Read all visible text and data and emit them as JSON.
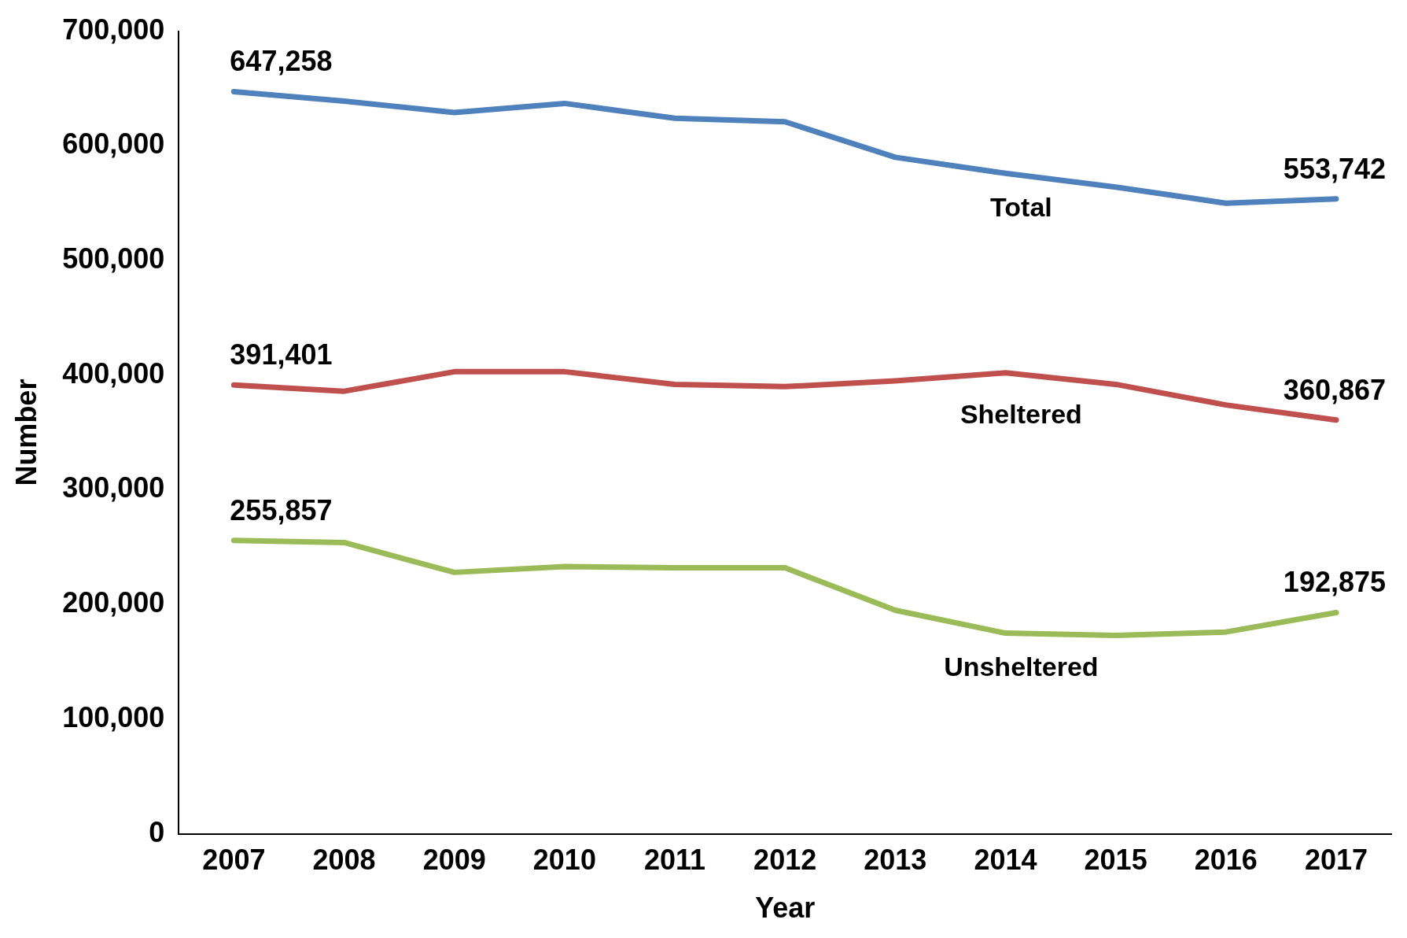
{
  "chart_data": {
    "type": "line",
    "xlabel": "Year",
    "ylabel": "Number",
    "categories": [
      "2007",
      "2008",
      "2009",
      "2010",
      "2011",
      "2012",
      "2013",
      "2014",
      "2015",
      "2016",
      "2017"
    ],
    "series": [
      {
        "name": "Total",
        "color": "#4f81bd",
        "values": [
          647258,
          639000,
          629000,
          637000,
          624000,
          621000,
          590000,
          576000,
          564000,
          550000,
          553742
        ],
        "value_labels": [
          "647,258",
          null,
          null,
          null,
          null,
          null,
          null,
          null,
          null,
          null,
          "553,742"
        ]
      },
      {
        "name": "Sheltered",
        "color": "#c0504d",
        "values": [
          391401,
          386000,
          403000,
          403000,
          392000,
          390000,
          395000,
          402000,
          392000,
          374000,
          360867
        ],
        "value_labels": [
          "391,401",
          null,
          null,
          null,
          null,
          null,
          null,
          null,
          null,
          null,
          "360,867"
        ]
      },
      {
        "name": "Unsheltered",
        "color": "#9bbb59",
        "values": [
          255857,
          254000,
          228000,
          233000,
          232000,
          232000,
          195000,
          175000,
          173000,
          176000,
          192875
        ],
        "value_labels": [
          "255,857",
          null,
          null,
          null,
          null,
          null,
          null,
          null,
          null,
          null,
          "192,875"
        ]
      }
    ],
    "ylim": [
      0,
      700000
    ],
    "yticks": [
      0,
      {
        "value": 100000,
        "label": "100,000"
      },
      {
        "value": 200000,
        "label": "200,000"
      },
      {
        "value": 300000,
        "label": "300,000"
      },
      {
        "value": 400000,
        "label": "400,000"
      },
      {
        "value": 500000,
        "label": "500,000"
      },
      {
        "value": 600000,
        "label": "600,000"
      },
      {
        "value": 700000,
        "label": "700,000"
      }
    ],
    "grid": false,
    "legend": false,
    "marker": "none",
    "line_style": "solid"
  }
}
